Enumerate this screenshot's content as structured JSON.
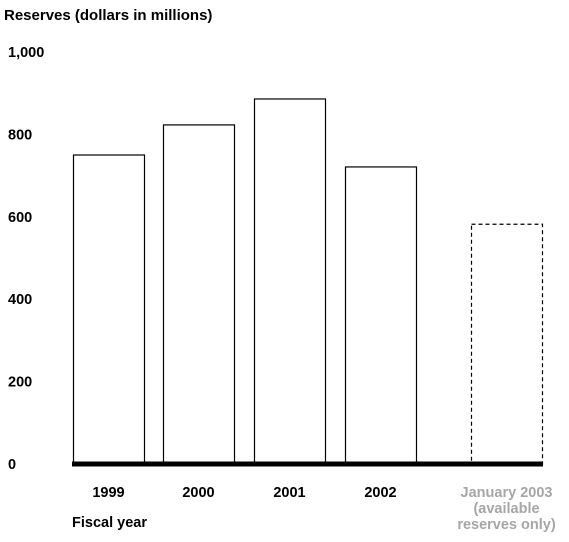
{
  "chart_data": {
    "type": "bar",
    "title": "Reserves (dollars in millions)",
    "xlabel": "Fiscal year",
    "ylabel": "",
    "ylim": [
      0,
      1000
    ],
    "y_ticks": [
      "0",
      "200",
      "400",
      "600",
      "800",
      "1,000"
    ],
    "y_tick_values": [
      0,
      200,
      400,
      600,
      800,
      1000
    ],
    "grid": false,
    "categories": [
      {
        "lines": [
          "1999"
        ],
        "muted": false
      },
      {
        "lines": [
          "2000"
        ],
        "muted": false
      },
      {
        "lines": [
          "2001"
        ],
        "muted": false
      },
      {
        "lines": [
          "2002"
        ],
        "muted": false
      },
      {
        "lines": [
          "January 2003",
          "(available",
          "reserves only)"
        ],
        "muted": true
      }
    ],
    "values": [
      750,
      823,
      886,
      721,
      582
    ],
    "bar_styles": [
      "solid",
      "solid",
      "solid",
      "solid",
      "dashed"
    ],
    "colors": {
      "bar_fill": "#ffffff",
      "bar_stroke": "#000000",
      "axis": "#000000",
      "muted_text": "#a6a6a6"
    }
  }
}
